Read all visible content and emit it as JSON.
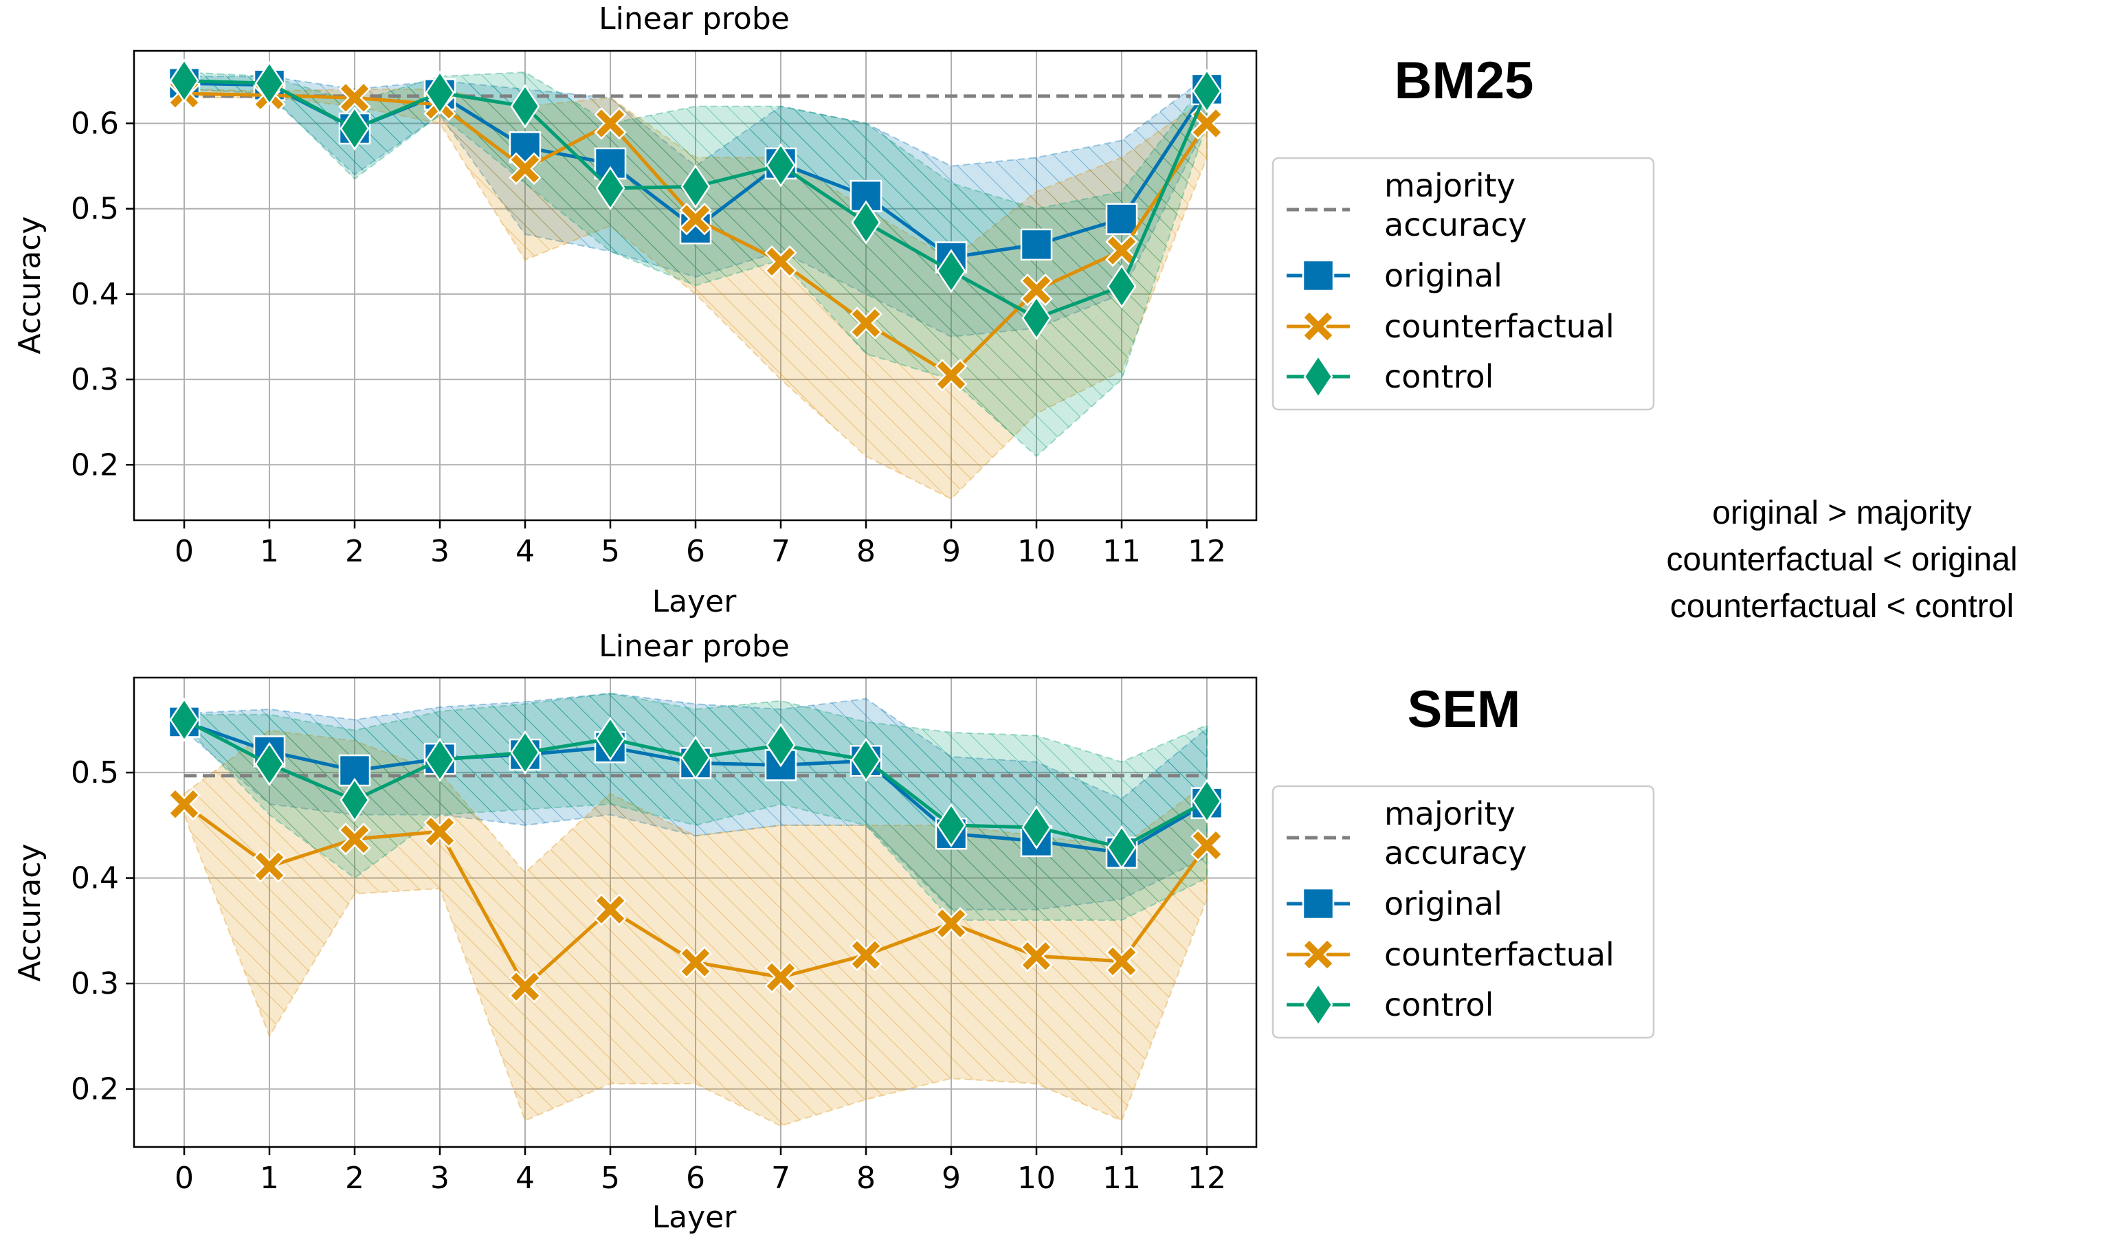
{
  "colors": {
    "original": "#0173b2",
    "counterfactual": "#de8f05",
    "control": "#029e73",
    "majority": "#808080",
    "grid": "#b0b0b0"
  },
  "legend": {
    "majority_line1": "majority",
    "majority_line2": "accuracy",
    "original": "original",
    "counterfactual": "counterfactual",
    "control": "control"
  },
  "annotation": {
    "line1": "original > majority",
    "line2": "counterfactual < original",
    "line3": "counterfactual < control"
  },
  "chart_data": [
    {
      "type": "line",
      "panel_title": "BM25",
      "title": "Linear probe",
      "xlabel": "Layer",
      "ylabel": "Accuracy",
      "x": [
        0,
        1,
        2,
        3,
        4,
        5,
        6,
        7,
        8,
        9,
        10,
        11,
        12
      ],
      "xticks": [
        "0",
        "1",
        "2",
        "3",
        "4",
        "5",
        "6",
        "7",
        "8",
        "9",
        "10",
        "11",
        "12"
      ],
      "ylim": [
        0.135,
        0.685
      ],
      "yticks": [
        "0.2",
        "0.3",
        "0.4",
        "0.5",
        "0.6"
      ],
      "ytick_values": [
        0.2,
        0.3,
        0.4,
        0.5,
        0.6
      ],
      "grid": true,
      "legend_position": "outside-right",
      "majority_accuracy": 0.632,
      "series": [
        {
          "name": "original",
          "marker": "square",
          "values": [
            0.647,
            0.645,
            0.594,
            0.634,
            0.572,
            0.553,
            0.477,
            0.553,
            0.515,
            0.443,
            0.458,
            0.488,
            0.64
          ],
          "lower": [
            0.635,
            0.632,
            0.54,
            0.61,
            0.47,
            0.45,
            0.42,
            0.45,
            0.4,
            0.35,
            0.36,
            0.4,
            0.6
          ],
          "upper": [
            0.655,
            0.655,
            0.64,
            0.65,
            0.64,
            0.63,
            0.55,
            0.62,
            0.6,
            0.55,
            0.56,
            0.58,
            0.655
          ]
        },
        {
          "name": "counterfactual",
          "marker": "x",
          "values": [
            0.635,
            0.633,
            0.63,
            0.622,
            0.547,
            0.6,
            0.488,
            0.438,
            0.366,
            0.305,
            0.405,
            0.451,
            0.6
          ],
          "lower": [
            0.63,
            0.63,
            0.62,
            0.6,
            0.44,
            0.48,
            0.4,
            0.3,
            0.21,
            0.16,
            0.26,
            0.31,
            0.56
          ],
          "upper": [
            0.64,
            0.638,
            0.64,
            0.64,
            0.62,
            0.63,
            0.56,
            0.56,
            0.5,
            0.44,
            0.52,
            0.56,
            0.63
          ]
        },
        {
          "name": "control",
          "marker": "diamond",
          "values": [
            0.65,
            0.647,
            0.594,
            0.636,
            0.62,
            0.524,
            0.526,
            0.551,
            0.484,
            0.427,
            0.372,
            0.409,
            0.638
          ],
          "lower": [
            0.64,
            0.635,
            0.535,
            0.61,
            0.53,
            0.45,
            0.41,
            0.44,
            0.33,
            0.3,
            0.21,
            0.3,
            0.6
          ],
          "upper": [
            0.66,
            0.655,
            0.625,
            0.655,
            0.66,
            0.6,
            0.62,
            0.62,
            0.6,
            0.53,
            0.5,
            0.52,
            0.65
          ]
        }
      ]
    },
    {
      "type": "line",
      "panel_title": "SEM",
      "title": "Linear probe",
      "xlabel": "Layer",
      "ylabel": "Accuracy",
      "x": [
        0,
        1,
        2,
        3,
        4,
        5,
        6,
        7,
        8,
        9,
        10,
        11,
        12
      ],
      "xticks": [
        "0",
        "1",
        "2",
        "3",
        "4",
        "5",
        "6",
        "7",
        "8",
        "9",
        "10",
        "11",
        "12"
      ],
      "ylim": [
        0.145,
        0.59
      ],
      "yticks": [
        "0.2",
        "0.3",
        "0.4",
        "0.5"
      ],
      "ytick_values": [
        0.2,
        0.3,
        0.4,
        0.5
      ],
      "grid": true,
      "legend_position": "outside-right",
      "majority_accuracy": 0.497,
      "series": [
        {
          "name": "original",
          "marker": "square",
          "values": [
            0.548,
            0.52,
            0.502,
            0.513,
            0.517,
            0.524,
            0.509,
            0.507,
            0.511,
            0.442,
            0.435,
            0.424,
            0.471
          ],
          "lower": [
            0.54,
            0.47,
            0.46,
            0.46,
            0.45,
            0.46,
            0.44,
            0.45,
            0.45,
            0.37,
            0.37,
            0.38,
            0.42
          ],
          "upper": [
            0.556,
            0.56,
            0.55,
            0.562,
            0.567,
            0.575,
            0.565,
            0.56,
            0.57,
            0.515,
            0.51,
            0.475,
            0.542
          ]
        },
        {
          "name": "counterfactual",
          "marker": "x",
          "values": [
            0.47,
            0.411,
            0.437,
            0.444,
            0.297,
            0.37,
            0.32,
            0.306,
            0.327,
            0.357,
            0.326,
            0.321,
            0.431
          ],
          "lower": [
            0.46,
            0.25,
            0.385,
            0.39,
            0.17,
            0.205,
            0.205,
            0.165,
            0.19,
            0.21,
            0.205,
            0.17,
            0.38
          ],
          "upper": [
            0.48,
            0.54,
            0.53,
            0.5,
            0.405,
            0.48,
            0.44,
            0.45,
            0.45,
            0.45,
            0.44,
            0.43,
            0.49
          ]
        },
        {
          "name": "control",
          "marker": "diamond",
          "values": [
            0.55,
            0.508,
            0.474,
            0.512,
            0.519,
            0.532,
            0.514,
            0.526,
            0.512,
            0.45,
            0.448,
            0.429,
            0.473
          ],
          "lower": [
            0.545,
            0.46,
            0.4,
            0.46,
            0.465,
            0.47,
            0.45,
            0.47,
            0.45,
            0.36,
            0.36,
            0.36,
            0.4
          ],
          "upper": [
            0.555,
            0.555,
            0.54,
            0.558,
            0.565,
            0.575,
            0.56,
            0.568,
            0.548,
            0.538,
            0.535,
            0.51,
            0.545
          ]
        }
      ]
    }
  ]
}
